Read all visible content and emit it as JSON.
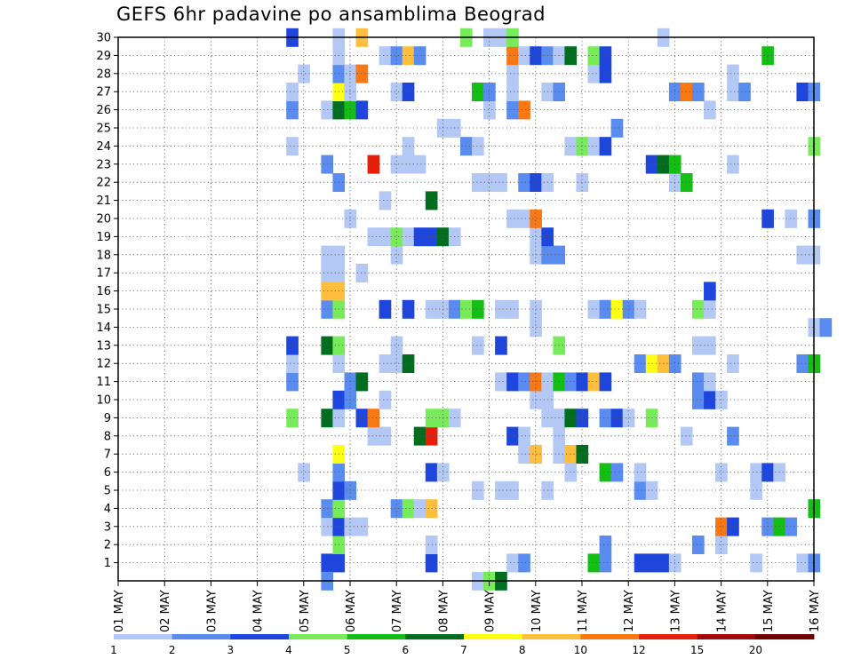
{
  "chart_data": {
    "type": "heatmap",
    "title": "GEFS 6hr padavine po ansamblima Beograd",
    "xlabel": "",
    "ylabel": "",
    "x_tick_labels": [
      "01 MAY",
      "02 MAY",
      "03 MAY",
      "04 MAY",
      "05 MAY",
      "06 MAY",
      "07 MAY",
      "08 MAY",
      "09 MAY",
      "10 MAY",
      "11 MAY",
      "12 MAY",
      "13 MAY",
      "14 MAY",
      "15 MAY",
      "16 MAY"
    ],
    "y_tick_labels": [
      "1",
      "2",
      "3",
      "4",
      "5",
      "6",
      "7",
      "8",
      "9",
      "10",
      "11",
      "12",
      "13",
      "14",
      "15",
      "16",
      "17",
      "18",
      "19",
      "20",
      "21",
      "22",
      "23",
      "24",
      "25",
      "26",
      "27",
      "28",
      "29",
      "30"
    ],
    "ylim": [
      0,
      30
    ],
    "time_steps_per_day": 4,
    "grid": "dotted",
    "colorbar": {
      "placement": "bottom",
      "labels": [
        "1",
        "2",
        "3",
        "4",
        "5",
        "6",
        "7",
        "8",
        "10",
        "12",
        "15",
        "20"
      ],
      "colors": [
        "#b4c8f5",
        "#5a8cf0",
        "#1e46dc",
        "#78eb5a",
        "#14be14",
        "#006e1e",
        "#ffff14",
        "#ffbe3c",
        "#fa7814",
        "#e61e0a",
        "#a00a0a",
        "#6e0000"
      ]
    },
    "cells": [
      [
        1,
        18,
        3
      ],
      [
        1,
        19,
        3
      ],
      [
        1,
        27,
        3
      ],
      [
        1,
        34,
        1
      ],
      [
        1,
        35,
        2
      ],
      [
        1,
        41,
        5
      ],
      [
        1,
        42,
        2
      ],
      [
        1,
        45,
        3
      ],
      [
        1,
        46,
        3
      ],
      [
        1,
        47,
        3
      ],
      [
        1,
        48,
        1
      ],
      [
        1,
        55,
        1
      ],
      [
        1,
        59,
        1
      ],
      [
        1,
        60,
        2
      ],
      [
        2,
        19,
        4
      ],
      [
        2,
        27,
        1
      ],
      [
        2,
        42,
        2
      ],
      [
        2,
        50,
        2
      ],
      [
        2,
        52,
        1
      ],
      [
        3,
        18,
        1
      ],
      [
        3,
        19,
        3
      ],
      [
        3,
        20,
        1
      ],
      [
        3,
        21,
        1
      ],
      [
        3,
        52,
        9
      ],
      [
        3,
        53,
        3
      ],
      [
        3,
        56,
        2
      ],
      [
        3,
        57,
        5
      ],
      [
        3,
        58,
        2
      ],
      [
        4,
        18,
        2
      ],
      [
        4,
        19,
        4
      ],
      [
        4,
        24,
        2
      ],
      [
        4,
        25,
        4
      ],
      [
        4,
        26,
        1
      ],
      [
        4,
        27,
        8
      ],
      [
        4,
        60,
        5
      ],
      [
        5,
        19,
        3
      ],
      [
        5,
        20,
        2
      ],
      [
        5,
        31,
        1
      ],
      [
        5,
        33,
        1
      ],
      [
        5,
        34,
        1
      ],
      [
        5,
        37,
        1
      ],
      [
        5,
        45,
        2
      ],
      [
        5,
        46,
        1
      ],
      [
        5,
        55,
        1
      ],
      [
        6,
        16,
        1
      ],
      [
        6,
        19,
        2
      ],
      [
        6,
        27,
        3
      ],
      [
        6,
        28,
        1
      ],
      [
        6,
        39,
        1
      ],
      [
        6,
        42,
        5
      ],
      [
        6,
        43,
        2
      ],
      [
        6,
        45,
        1
      ],
      [
        6,
        52,
        1
      ],
      [
        6,
        55,
        1
      ],
      [
        6,
        56,
        3
      ],
      [
        6,
        57,
        1
      ],
      [
        7,
        19,
        7
      ],
      [
        7,
        35,
        1
      ],
      [
        7,
        36,
        8
      ],
      [
        7,
        38,
        1
      ],
      [
        7,
        39,
        8
      ],
      [
        7,
        40,
        6
      ],
      [
        8,
        22,
        1
      ],
      [
        8,
        23,
        1
      ],
      [
        8,
        26,
        6
      ],
      [
        8,
        27,
        10
      ],
      [
        8,
        34,
        3
      ],
      [
        8,
        35,
        1
      ],
      [
        8,
        38,
        1
      ],
      [
        8,
        49,
        1
      ],
      [
        8,
        53,
        2
      ],
      [
        9,
        15,
        4
      ],
      [
        9,
        18,
        6
      ],
      [
        9,
        19,
        1
      ],
      [
        9,
        21,
        3
      ],
      [
        9,
        22,
        9
      ],
      [
        9,
        27,
        4
      ],
      [
        9,
        28,
        4
      ],
      [
        9,
        29,
        1
      ],
      [
        9,
        37,
        1
      ],
      [
        9,
        38,
        1
      ],
      [
        9,
        39,
        6
      ],
      [
        9,
        40,
        3
      ],
      [
        9,
        42,
        2
      ],
      [
        9,
        43,
        3
      ],
      [
        9,
        44,
        1
      ],
      [
        9,
        46,
        4
      ],
      [
        10,
        19,
        3
      ],
      [
        10,
        20,
        2
      ],
      [
        10,
        23,
        1
      ],
      [
        10,
        36,
        1
      ],
      [
        10,
        37,
        1
      ],
      [
        10,
        50,
        2
      ],
      [
        10,
        51,
        3
      ],
      [
        10,
        52,
        1
      ],
      [
        11,
        15,
        2
      ],
      [
        11,
        20,
        2
      ],
      [
        11,
        21,
        6
      ],
      [
        11,
        33,
        1
      ],
      [
        11,
        34,
        3
      ],
      [
        11,
        35,
        2
      ],
      [
        11,
        36,
        9
      ],
      [
        11,
        37,
        1
      ],
      [
        11,
        38,
        5
      ],
      [
        11,
        39,
        2
      ],
      [
        11,
        40,
        3
      ],
      [
        11,
        41,
        8
      ],
      [
        11,
        42,
        3
      ],
      [
        11,
        50,
        2
      ],
      [
        11,
        51,
        1
      ],
      [
        12,
        15,
        1
      ],
      [
        12,
        19,
        1
      ],
      [
        12,
        23,
        1
      ],
      [
        12,
        24,
        1
      ],
      [
        12,
        25,
        6
      ],
      [
        12,
        45,
        2
      ],
      [
        12,
        46,
        7
      ],
      [
        12,
        47,
        8
      ],
      [
        12,
        48,
        2
      ],
      [
        12,
        53,
        1
      ],
      [
        12,
        59,
        2
      ],
      [
        12,
        60,
        5
      ],
      [
        13,
        15,
        3
      ],
      [
        13,
        18,
        6
      ],
      [
        13,
        19,
        4
      ],
      [
        13,
        24,
        1
      ],
      [
        13,
        31,
        1
      ],
      [
        13,
        33,
        3
      ],
      [
        13,
        38,
        4
      ],
      [
        13,
        50,
        1
      ],
      [
        13,
        51,
        1
      ],
      [
        14,
        36,
        1
      ],
      [
        14,
        60,
        1
      ],
      [
        14,
        61,
        2
      ],
      [
        15,
        18,
        2
      ],
      [
        15,
        19,
        4
      ],
      [
        15,
        23,
        3
      ],
      [
        15,
        25,
        3
      ],
      [
        15,
        27,
        1
      ],
      [
        15,
        28,
        1
      ],
      [
        15,
        29,
        2
      ],
      [
        15,
        30,
        4
      ],
      [
        15,
        31,
        5
      ],
      [
        15,
        33,
        1
      ],
      [
        15,
        34,
        1
      ],
      [
        15,
        36,
        1
      ],
      [
        15,
        41,
        1
      ],
      [
        15,
        42,
        2
      ],
      [
        15,
        43,
        7
      ],
      [
        15,
        44,
        2
      ],
      [
        15,
        45,
        1
      ],
      [
        15,
        50,
        4
      ],
      [
        15,
        51,
        1
      ],
      [
        16,
        18,
        8
      ],
      [
        16,
        19,
        8
      ],
      [
        16,
        51,
        3
      ],
      [
        17,
        18,
        1
      ],
      [
        17,
        19,
        1
      ],
      [
        17,
        21,
        1
      ],
      [
        18,
        18,
        1
      ],
      [
        18,
        19,
        1
      ],
      [
        18,
        24,
        1
      ],
      [
        18,
        36,
        1
      ],
      [
        18,
        37,
        2
      ],
      [
        18,
        38,
        2
      ],
      [
        18,
        59,
        1
      ],
      [
        18,
        60,
        1
      ],
      [
        19,
        22,
        1
      ],
      [
        19,
        23,
        1
      ],
      [
        19,
        24,
        4
      ],
      [
        19,
        25,
        1
      ],
      [
        19,
        26,
        3
      ],
      [
        19,
        27,
        3
      ],
      [
        19,
        28,
        6
      ],
      [
        19,
        29,
        1
      ],
      [
        19,
        36,
        1
      ],
      [
        19,
        37,
        3
      ],
      [
        20,
        20,
        1
      ],
      [
        20,
        34,
        1
      ],
      [
        20,
        35,
        1
      ],
      [
        20,
        36,
        9
      ],
      [
        20,
        56,
        3
      ],
      [
        20,
        58,
        1
      ],
      [
        20,
        60,
        2
      ],
      [
        21,
        23,
        1
      ],
      [
        21,
        27,
        6
      ],
      [
        22,
        19,
        2
      ],
      [
        22,
        31,
        1
      ],
      [
        22,
        32,
        1
      ],
      [
        22,
        33,
        1
      ],
      [
        22,
        35,
        2
      ],
      [
        22,
        36,
        3
      ],
      [
        22,
        37,
        1
      ],
      [
        22,
        40,
        1
      ],
      [
        22,
        48,
        1
      ],
      [
        22,
        49,
        5
      ],
      [
        23,
        18,
        2
      ],
      [
        23,
        22,
        10
      ],
      [
        23,
        24,
        1
      ],
      [
        23,
        25,
        1
      ],
      [
        23,
        26,
        1
      ],
      [
        23,
        46,
        3
      ],
      [
        23,
        47,
        6
      ],
      [
        23,
        48,
        5
      ],
      [
        23,
        53,
        1
      ],
      [
        24,
        15,
        1
      ],
      [
        24,
        25,
        1
      ],
      [
        24,
        30,
        2
      ],
      [
        24,
        31,
        1
      ],
      [
        24,
        39,
        1
      ],
      [
        24,
        40,
        4
      ],
      [
        24,
        41,
        1
      ],
      [
        24,
        42,
        3
      ],
      [
        24,
        60,
        4
      ],
      [
        25,
        28,
        1
      ],
      [
        25,
        29,
        1
      ],
      [
        25,
        43,
        2
      ],
      [
        26,
        15,
        2
      ],
      [
        26,
        18,
        1
      ],
      [
        26,
        19,
        6
      ],
      [
        26,
        20,
        5
      ],
      [
        26,
        21,
        3
      ],
      [
        26,
        32,
        1
      ],
      [
        26,
        34,
        2
      ],
      [
        26,
        35,
        9
      ],
      [
        26,
        51,
        1
      ],
      [
        27,
        15,
        1
      ],
      [
        27,
        19,
        7
      ],
      [
        27,
        20,
        1
      ],
      [
        27,
        24,
        1
      ],
      [
        27,
        25,
        3
      ],
      [
        27,
        31,
        5
      ],
      [
        27,
        32,
        2
      ],
      [
        27,
        34,
        1
      ],
      [
        27,
        37,
        1
      ],
      [
        27,
        38,
        2
      ],
      [
        27,
        48,
        2
      ],
      [
        27,
        49,
        9
      ],
      [
        27,
        50,
        2
      ],
      [
        27,
        53,
        1
      ],
      [
        27,
        54,
        2
      ],
      [
        27,
        59,
        3
      ],
      [
        27,
        60,
        2
      ],
      [
        28,
        16,
        1
      ],
      [
        28,
        19,
        2
      ],
      [
        28,
        20,
        1
      ],
      [
        28,
        21,
        9
      ],
      [
        28,
        34,
        1
      ],
      [
        28,
        41,
        1
      ],
      [
        28,
        42,
        3
      ],
      [
        28,
        53,
        1
      ],
      [
        29,
        19,
        1
      ],
      [
        29,
        23,
        1
      ],
      [
        29,
        24,
        2
      ],
      [
        29,
        25,
        8
      ],
      [
        29,
        26,
        2
      ],
      [
        29,
        34,
        9
      ],
      [
        29,
        35,
        1
      ],
      [
        29,
        36,
        3
      ],
      [
        29,
        37,
        2
      ],
      [
        29,
        38,
        1
      ],
      [
        29,
        39,
        6
      ],
      [
        29,
        41,
        4
      ],
      [
        29,
        42,
        3
      ],
      [
        29,
        56,
        5
      ],
      [
        30,
        15,
        3
      ],
      [
        30,
        19,
        1
      ],
      [
        30,
        21,
        8
      ],
      [
        30,
        30,
        4
      ],
      [
        30,
        32,
        1
      ],
      [
        30,
        33,
        1
      ],
      [
        30,
        34,
        4
      ],
      [
        30,
        47,
        1
      ],
      [
        0,
        18,
        2
      ],
      [
        0,
        31,
        1
      ],
      [
        0,
        32,
        4
      ],
      [
        0,
        33,
        6
      ]
    ]
  }
}
